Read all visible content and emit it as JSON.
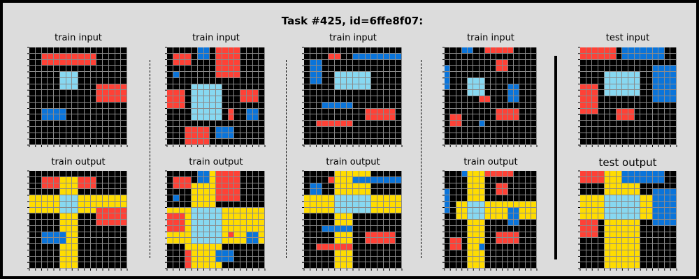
{
  "title": "Task #425, id=6ffe8f07:",
  "colors": {
    "0": "#000000",
    "1": "#0a74da",
    "2": "#ff4136",
    "3": "#ffdc00",
    "4": "#87d8f1"
  },
  "panels": [
    {
      "label": "train input",
      "label_size": "normal",
      "bg": 0,
      "w": 16,
      "h": 16,
      "rects": [
        [
          2,
          1,
          11,
          3,
          2
        ],
        [
          5,
          4,
          8,
          7,
          4
        ],
        [
          11,
          6,
          16,
          9,
          2
        ],
        [
          2,
          10,
          6,
          12,
          1
        ]
      ]
    },
    {
      "label": "train output",
      "label_size": "normal",
      "bg": 0,
      "w": 16,
      "h": 16,
      "rects": [
        [
          2,
          1,
          11,
          3,
          2
        ],
        [
          5,
          1,
          8,
          16,
          3
        ],
        [
          0,
          4,
          16,
          7,
          3
        ],
        [
          11,
          6,
          16,
          9,
          2
        ],
        [
          5,
          4,
          8,
          7,
          4
        ],
        [
          2,
          10,
          6,
          12,
          1
        ]
      ]
    },
    {
      "label": "train input",
      "label_size": "normal",
      "bg": 0,
      "w": 16,
      "h": 16,
      "rects": [
        [
          1,
          1,
          4,
          3,
          2
        ],
        [
          5,
          0,
          7,
          2,
          1
        ],
        [
          8,
          0,
          12,
          5,
          2
        ],
        [
          1,
          4,
          2,
          5,
          1
        ],
        [
          0,
          7,
          3,
          10,
          2
        ],
        [
          4,
          6,
          9,
          12,
          4
        ],
        [
          12,
          7,
          15,
          9,
          2
        ],
        [
          10,
          10,
          11,
          12,
          2
        ],
        [
          13,
          10,
          15,
          12,
          1
        ],
        [
          3,
          13,
          7,
          16,
          2
        ],
        [
          8,
          13,
          11,
          15,
          1
        ]
      ]
    },
    {
      "label": "train output",
      "label_size": "normal",
      "bg": 0,
      "w": 16,
      "h": 16,
      "rects": [
        [
          1,
          1,
          4,
          3,
          2
        ],
        [
          5,
          0,
          7,
          2,
          1
        ],
        [
          7,
          0,
          8,
          2,
          3
        ],
        [
          8,
          0,
          12,
          5,
          2
        ],
        [
          4,
          2,
          8,
          6,
          3
        ],
        [
          1,
          4,
          2,
          5,
          1
        ],
        [
          0,
          6,
          16,
          12,
          3
        ],
        [
          0,
          7,
          3,
          10,
          2
        ],
        [
          4,
          6,
          9,
          12,
          4
        ],
        [
          3,
          12,
          9,
          16,
          3
        ],
        [
          3,
          13,
          4,
          16,
          2
        ],
        [
          10,
          10,
          11,
          11,
          2
        ],
        [
          13,
          10,
          15,
          12,
          1
        ],
        [
          8,
          13,
          11,
          15,
          1
        ]
      ]
    },
    {
      "label": "train input",
      "label_size": "normal",
      "bg": 0,
      "w": 16,
      "h": 16,
      "rects": [
        [
          4,
          1,
          6,
          2,
          2
        ],
        [
          8,
          1,
          16,
          2,
          1
        ],
        [
          1,
          2,
          3,
          6,
          1
        ],
        [
          5,
          4,
          11,
          7,
          4
        ],
        [
          3,
          9,
          8,
          10,
          1
        ],
        [
          10,
          10,
          15,
          12,
          2
        ],
        [
          2,
          12,
          8,
          13,
          2
        ]
      ]
    },
    {
      "label": "train output",
      "label_size": "normal",
      "bg": 0,
      "w": 16,
      "h": 16,
      "rects": [
        [
          4,
          1,
          5,
          2,
          2
        ],
        [
          5,
          0,
          8,
          16,
          3
        ],
        [
          8,
          0,
          11,
          4,
          3
        ],
        [
          8,
          1,
          16,
          2,
          1
        ],
        [
          1,
          2,
          3,
          6,
          1
        ],
        [
          0,
          4,
          16,
          7,
          3
        ],
        [
          5,
          4,
          11,
          7,
          4
        ],
        [
          3,
          9,
          8,
          10,
          1
        ],
        [
          10,
          10,
          15,
          12,
          2
        ],
        [
          2,
          12,
          8,
          13,
          2
        ]
      ]
    },
    {
      "label": "train input",
      "label_size": "normal",
      "bg": 0,
      "w": 16,
      "h": 16,
      "rects": [
        [
          3,
          0,
          5,
          1,
          1
        ],
        [
          7,
          0,
          12,
          1,
          2
        ],
        [
          9,
          2,
          11,
          4,
          2
        ],
        [
          0,
          3,
          1,
          7,
          1
        ],
        [
          4,
          5,
          7,
          8,
          4
        ],
        [
          11,
          6,
          13,
          9,
          1
        ],
        [
          6,
          8,
          8,
          9,
          2
        ],
        [
          1,
          11,
          3,
          13,
          2
        ],
        [
          9,
          10,
          13,
          12,
          2
        ],
        [
          6,
          12,
          7,
          13,
          1
        ]
      ]
    },
    {
      "label": "train output",
      "label_size": "normal",
      "bg": 0,
      "w": 16,
      "h": 16,
      "rects": [
        [
          3,
          0,
          5,
          1,
          1
        ],
        [
          7,
          0,
          12,
          1,
          2
        ],
        [
          4,
          0,
          7,
          16,
          3
        ],
        [
          2,
          5,
          17,
          8,
          3
        ],
        [
          9,
          2,
          11,
          4,
          2
        ],
        [
          0,
          3,
          1,
          7,
          1
        ],
        [
          4,
          5,
          7,
          8,
          4
        ],
        [
          11,
          6,
          13,
          9,
          1
        ],
        [
          1,
          11,
          3,
          13,
          2
        ],
        [
          9,
          10,
          13,
          12,
          2
        ],
        [
          6,
          12,
          7,
          13,
          1
        ]
      ]
    },
    {
      "label": "test input",
      "label_size": "normal",
      "bg": 0,
      "w": 16,
      "h": 16,
      "rects": [
        [
          0,
          0,
          6,
          2,
          2
        ],
        [
          7,
          0,
          14,
          2,
          1
        ],
        [
          12,
          3,
          16,
          9,
          1
        ],
        [
          4,
          4,
          10,
          8,
          4
        ],
        [
          0,
          6,
          3,
          11,
          2
        ],
        [
          6,
          10,
          9,
          12,
          2
        ]
      ]
    },
    {
      "label": "test output",
      "label_size": "big",
      "bg": 0,
      "w": 16,
      "h": 16,
      "rects": [
        [
          0,
          0,
          4,
          2,
          2
        ],
        [
          4,
          0,
          10,
          16,
          3
        ],
        [
          7,
          0,
          14,
          2,
          1
        ],
        [
          0,
          4,
          12,
          8,
          3
        ],
        [
          12,
          3,
          16,
          9,
          1
        ],
        [
          4,
          4,
          10,
          8,
          4
        ],
        [
          0,
          8,
          3,
          11,
          2
        ]
      ]
    }
  ]
}
